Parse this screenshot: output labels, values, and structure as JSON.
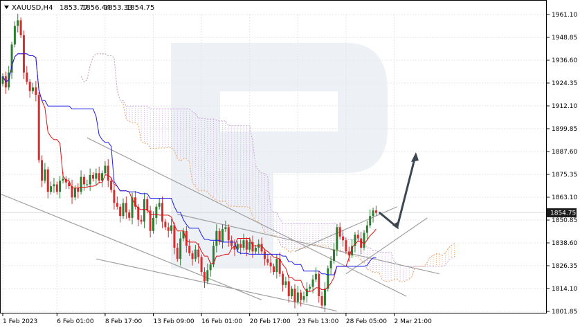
{
  "header": {
    "symbol": "XAUUSD,H4",
    "open": "1853.77",
    "high": "1856.44",
    "low": "1853.33",
    "close": "1854.75"
  },
  "current_price_label": "1854.75",
  "colors": {
    "bull": "#2e7d32",
    "bear": "#d32f2f",
    "tenkan": "#dd1111",
    "kijun": "#1a1aee",
    "cloud_orange": "#f0a060",
    "cloud_purple": "#c9a8d8",
    "trend_line": "#a0a0a0",
    "arrow": "#3d4752",
    "grid": "#e6e6e6",
    "watermark": "#dfe5ec",
    "price_tag": "#1d1d1d"
  },
  "chart_data": {
    "type": "candlestick",
    "title": "XAUUSD,H4",
    "ylim": [
      1801.85,
      1961.1
    ],
    "y_ticks": [
      "1961.10",
      "1948.85",
      "1936.60",
      "1924.35",
      "1912.10",
      "1899.85",
      "1887.60",
      "1875.35",
      "1863.10",
      "1850.85",
      "1838.60",
      "1826.35",
      "1814.10",
      "1801.85"
    ],
    "x_ticks": [
      {
        "label": "1 Feb 2023",
        "index": 0
      },
      {
        "label": "6 Feb 01:00",
        "index": 18
      },
      {
        "label": "8 Feb 17:00",
        "index": 34
      },
      {
        "label": "13 Feb 09:00",
        "index": 50
      },
      {
        "label": "16 Feb 01:00",
        "index": 66
      },
      {
        "label": "20 Feb 17:00",
        "index": 82
      },
      {
        "label": "23 Feb 13:00",
        "index": 98
      },
      {
        "label": "28 Feb 05:00",
        "index": 114
      },
      {
        "label": "2 Mar 21:00",
        "index": 130
      }
    ],
    "close_series": [
      1928,
      1922,
      1930,
      1945,
      1955,
      1958,
      1950,
      1930,
      1925,
      1920,
      1922,
      1918,
      1883,
      1872,
      1878,
      1866,
      1869,
      1870,
      1866,
      1872,
      1873,
      1871,
      1869,
      1863,
      1868,
      1866,
      1874,
      1870,
      1870,
      1875,
      1873,
      1876,
      1872,
      1876,
      1880,
      1872,
      1867,
      1860,
      1858,
      1853,
      1860,
      1855,
      1852,
      1863,
      1858,
      1851,
      1850,
      1862,
      1856,
      1845,
      1852,
      1858,
      1860,
      1850,
      1847,
      1845,
      1848,
      1836,
      1830,
      1841,
      1845,
      1837,
      1833,
      1830,
      1835,
      1831,
      1823,
      1818,
      1824,
      1827,
      1837,
      1845,
      1839,
      1846,
      1847,
      1840,
      1837,
      1835,
      1838,
      1836,
      1840,
      1835,
      1839,
      1834,
      1836,
      1838,
      1834,
      1830,
      1828,
      1826,
      1823,
      1830,
      1822,
      1816,
      1818,
      1810,
      1814,
      1807,
      1812,
      1808,
      1810,
      1814,
      1815,
      1819,
      1822,
      1810,
      1805,
      1814,
      1825,
      1829,
      1835,
      1847,
      1842,
      1840,
      1834,
      1832,
      1837,
      1843,
      1841,
      1836,
      1844,
      1848,
      1853,
      1856,
      1854.75
    ],
    "annotations": [
      "forecast arrow down then up",
      "ascending channel",
      "descending channel"
    ]
  }
}
